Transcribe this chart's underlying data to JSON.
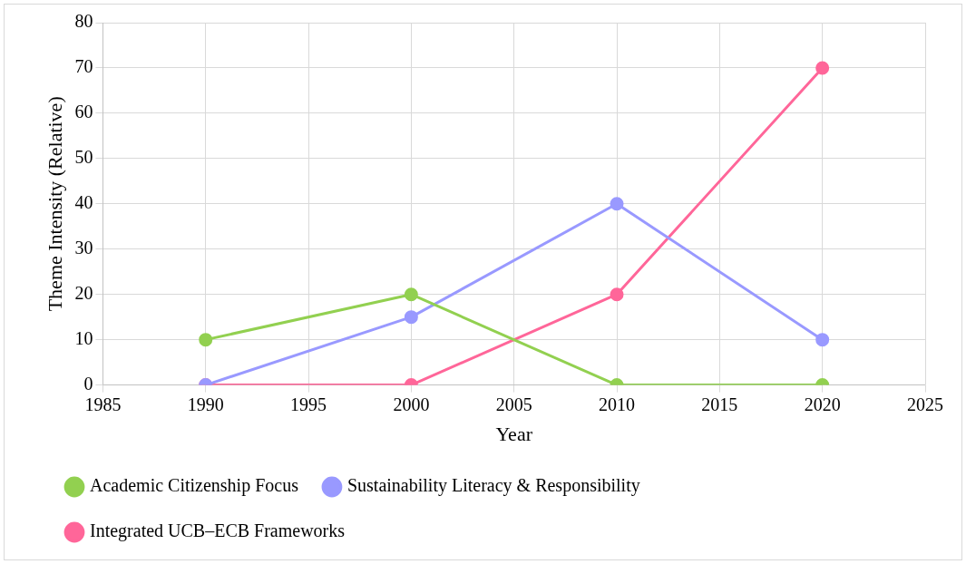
{
  "chart_data": {
    "type": "line",
    "xlabel": "Year",
    "ylabel": "Theme Intensity (Relative)",
    "x": [
      1990,
      2000,
      2010,
      2020
    ],
    "series": [
      {
        "name": "Academic Citizenship Focus",
        "color": "#92d050",
        "values": [
          10,
          20,
          0,
          0
        ]
      },
      {
        "name": "Sustainability Literacy & Responsibility",
        "color": "#9999ff",
        "values": [
          0,
          15,
          40,
          10
        ]
      },
      {
        "name": "Integrated UCB–ECB Frameworks",
        "color": "#ff6699",
        "values": [
          0,
          0,
          20,
          70
        ]
      }
    ],
    "xlim": [
      1985,
      2025
    ],
    "xticks": [
      1985,
      1990,
      1995,
      2000,
      2005,
      2010,
      2015,
      2020,
      2025
    ],
    "ylim": [
      0,
      80
    ],
    "yticks": [
      0,
      10,
      20,
      30,
      40,
      50,
      60,
      70,
      80
    ],
    "grid": true,
    "legend": "bottom",
    "marker": "circle",
    "line_style": "solid"
  }
}
